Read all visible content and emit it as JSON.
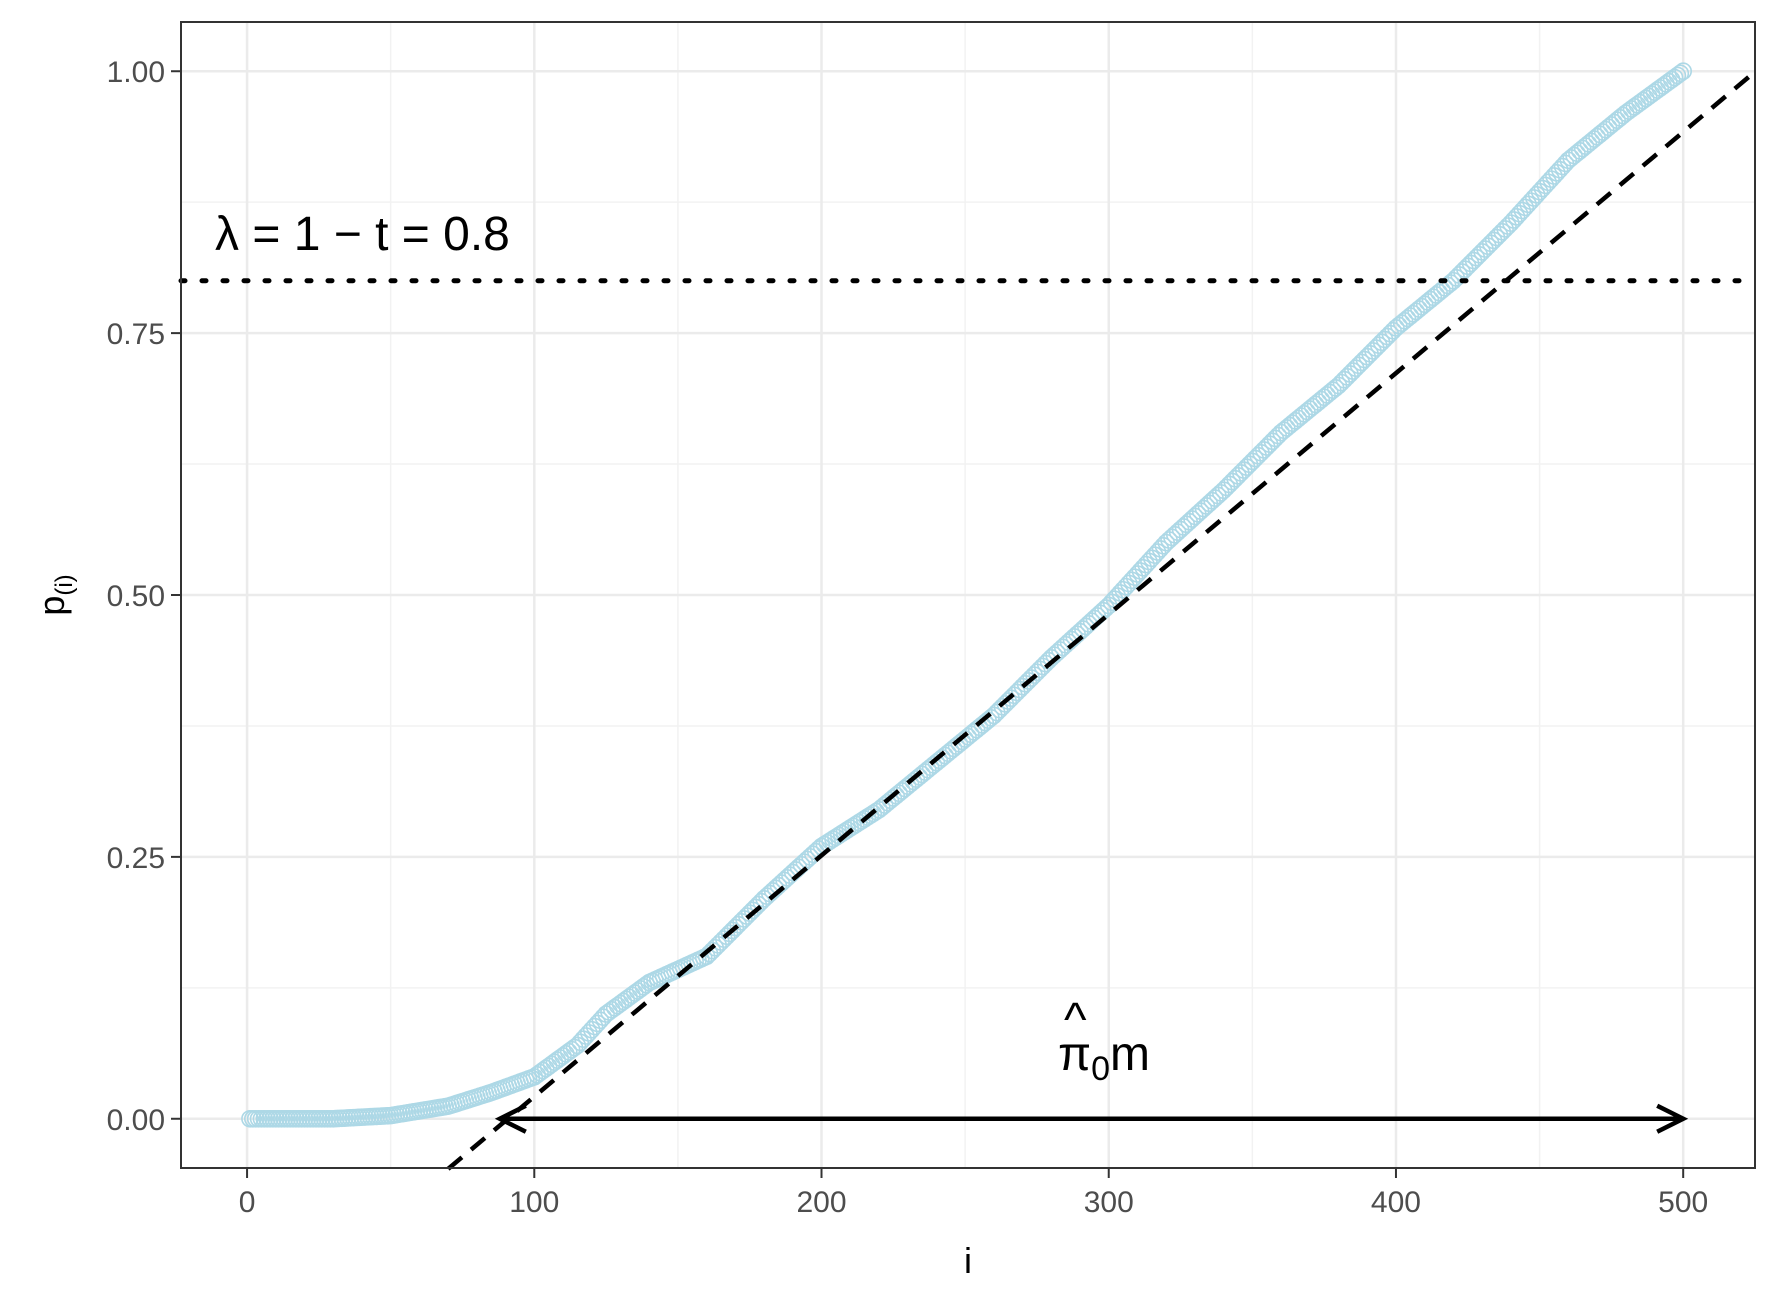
{
  "chart_data": {
    "type": "scatter",
    "xlabel": "i",
    "ylabel": "p",
    "ylabel_subscript": "(i)",
    "xlim": [
      -23,
      525
    ],
    "ylim": [
      -0.047,
      1.047
    ],
    "x_ticks": [
      0,
      100,
      200,
      300,
      400,
      500
    ],
    "x_tick_labels": [
      "0",
      "100",
      "200",
      "300",
      "400",
      "500"
    ],
    "y_ticks": [
      0,
      0.25,
      0.5,
      0.75,
      1.0
    ],
    "y_tick_labels": [
      "0.00",
      "0.25",
      "0.50",
      "0.75",
      "1.00"
    ],
    "grid": true,
    "point_color": "#add8e6",
    "n_points": 500,
    "points_profile": [
      [
        0,
        0.0
      ],
      [
        30,
        0.0
      ],
      [
        50,
        0.003
      ],
      [
        70,
        0.012
      ],
      [
        85,
        0.025
      ],
      [
        100,
        0.04
      ],
      [
        115,
        0.07
      ],
      [
        125,
        0.1
      ],
      [
        140,
        0.13
      ],
      [
        160,
        0.155
      ],
      [
        180,
        0.21
      ],
      [
        200,
        0.26
      ],
      [
        220,
        0.295
      ],
      [
        240,
        0.34
      ],
      [
        260,
        0.385
      ],
      [
        280,
        0.44
      ],
      [
        300,
        0.49
      ],
      [
        320,
        0.55
      ],
      [
        340,
        0.6
      ],
      [
        360,
        0.655
      ],
      [
        380,
        0.7
      ],
      [
        400,
        0.755
      ],
      [
        420,
        0.8
      ],
      [
        440,
        0.855
      ],
      [
        460,
        0.915
      ],
      [
        480,
        0.96
      ],
      [
        500,
        1.0
      ]
    ],
    "dashed_line": {
      "slope": 0.002302,
      "intercept": -0.209,
      "x_from": 70,
      "x_to": 525,
      "color": "#000000"
    },
    "dotted_line": {
      "y": 0.8,
      "color": "#000000"
    },
    "arrow": {
      "x_from": 88,
      "x_to": 500,
      "y": 0.0
    },
    "annotations": {
      "lambda_label": "λ =  1 − t = 0.8",
      "pi_label_main": "π",
      "pi_label_hat": "^",
      "pi_label_sub": "0",
      "pi_label_tail": "m"
    }
  }
}
